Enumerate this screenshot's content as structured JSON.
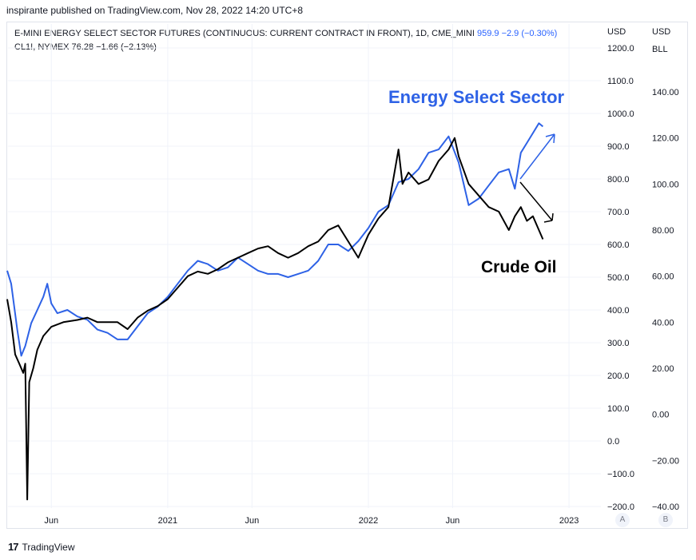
{
  "header": {
    "publisher": "inspirante published on TradingView.com, Nov 28, 2022 14:20 UTC+8"
  },
  "legend": {
    "series1_name": "E-MINI ENERGY SELECT SECTOR FUTURES (CONTINUOUS: CURRENT CONTRACT IN FRONT), 1D, CME_MINI",
    "series1_value": "959.9",
    "series1_change": "−2.9 (−0.30%)",
    "series2_name": "CL1!, NYMEX",
    "series2_value": "76.28",
    "series2_change": "−1.66 (−2.13%)"
  },
  "axes": {
    "left_unit": "USD",
    "right_unit_top": "USD",
    "right_unit_bottom": "BLL",
    "scale_a_button": "A",
    "scale_b_button": "B"
  },
  "footer": {
    "logo": "17",
    "brand": "TradingView"
  },
  "chart_data": {
    "type": "line",
    "annotations": [
      "Energy Select Sector",
      "Crude Oil"
    ],
    "colors": {
      "energy": "#2e62e6",
      "crude": "#000000",
      "grid": "#f0f3fa",
      "axis_text": "#131722"
    },
    "x_range": [
      2020.2,
      2022.92
    ],
    "x_ticks": [
      {
        "label": "Jun",
        "t": 2020.42
      },
      {
        "label": "2021",
        "t": 2021.0
      },
      {
        "label": "Jun",
        "t": 2021.42
      },
      {
        "label": "2022",
        "t": 2022.0
      },
      {
        "label": "Jun",
        "t": 2022.42
      },
      {
        "label": "2023",
        "t": 2023.0
      }
    ],
    "y_left": {
      "range": [
        -200,
        1200
      ],
      "ticks": [
        "1200.0",
        "1100.0",
        "1000.0",
        "900.0",
        "800.0",
        "700.0",
        "600.0",
        "500.0",
        "400.0",
        "300.0",
        "200.0",
        "100.0",
        "0.0",
        "−100.0",
        "−200.0"
      ],
      "tick_values": [
        1200,
        1100,
        1000,
        900,
        800,
        700,
        600,
        500,
        400,
        300,
        200,
        100,
        0,
        -100,
        -200
      ]
    },
    "y_right": {
      "range": [
        -40,
        145
      ],
      "ticks": [
        "140.00",
        "120.00",
        "100.00",
        "80.00",
        "60.00",
        "40.00",
        "20.00",
        "0.00",
        "−20.00",
        "−40.00"
      ],
      "tick_values": [
        140,
        120,
        100,
        80,
        60,
        40,
        20,
        0,
        -20,
        -40
      ]
    },
    "series": [
      {
        "key": "energy",
        "axis": "left",
        "points": [
          [
            2020.2,
            520
          ],
          [
            2020.22,
            480
          ],
          [
            2020.25,
            340
          ],
          [
            2020.27,
            260
          ],
          [
            2020.29,
            290
          ],
          [
            2020.32,
            360
          ],
          [
            2020.35,
            400
          ],
          [
            2020.38,
            440
          ],
          [
            2020.4,
            480
          ],
          [
            2020.42,
            420
          ],
          [
            2020.45,
            390
          ],
          [
            2020.5,
            400
          ],
          [
            2020.55,
            380
          ],
          [
            2020.6,
            370
          ],
          [
            2020.65,
            340
          ],
          [
            2020.7,
            330
          ],
          [
            2020.75,
            310
          ],
          [
            2020.8,
            310
          ],
          [
            2020.85,
            350
          ],
          [
            2020.9,
            390
          ],
          [
            2020.95,
            410
          ],
          [
            2021.0,
            440
          ],
          [
            2021.05,
            480
          ],
          [
            2021.1,
            520
          ],
          [
            2021.15,
            550
          ],
          [
            2021.2,
            540
          ],
          [
            2021.25,
            520
          ],
          [
            2021.3,
            530
          ],
          [
            2021.35,
            560
          ],
          [
            2021.4,
            540
          ],
          [
            2021.45,
            520
          ],
          [
            2021.5,
            510
          ],
          [
            2021.55,
            510
          ],
          [
            2021.6,
            500
          ],
          [
            2021.65,
            510
          ],
          [
            2021.7,
            520
          ],
          [
            2021.75,
            550
          ],
          [
            2021.8,
            600
          ],
          [
            2021.85,
            600
          ],
          [
            2021.9,
            580
          ],
          [
            2021.95,
            610
          ],
          [
            2022.0,
            650
          ],
          [
            2022.05,
            700
          ],
          [
            2022.1,
            720
          ],
          [
            2022.15,
            790
          ],
          [
            2022.2,
            800
          ],
          [
            2022.25,
            830
          ],
          [
            2022.3,
            880
          ],
          [
            2022.35,
            890
          ],
          [
            2022.4,
            930
          ],
          [
            2022.45,
            850
          ],
          [
            2022.5,
            720
          ],
          [
            2022.55,
            740
          ],
          [
            2022.6,
            780
          ],
          [
            2022.65,
            820
          ],
          [
            2022.7,
            830
          ],
          [
            2022.73,
            770
          ],
          [
            2022.76,
            880
          ],
          [
            2022.79,
            910
          ],
          [
            2022.82,
            940
          ],
          [
            2022.85,
            970
          ],
          [
            2022.87,
            960
          ]
        ]
      },
      {
        "key": "crude",
        "axis": "right",
        "points": [
          [
            2020.2,
            50
          ],
          [
            2020.22,
            40
          ],
          [
            2020.24,
            26
          ],
          [
            2020.26,
            22
          ],
          [
            2020.28,
            18
          ],
          [
            2020.29,
            22
          ],
          [
            2020.3,
            -37
          ],
          [
            2020.31,
            14
          ],
          [
            2020.33,
            20
          ],
          [
            2020.35,
            28
          ],
          [
            2020.38,
            34
          ],
          [
            2020.42,
            38
          ],
          [
            2020.48,
            40
          ],
          [
            2020.55,
            41
          ],
          [
            2020.6,
            42
          ],
          [
            2020.65,
            40
          ],
          [
            2020.7,
            40
          ],
          [
            2020.75,
            40
          ],
          [
            2020.8,
            37
          ],
          [
            2020.85,
            42
          ],
          [
            2020.9,
            45
          ],
          [
            2020.95,
            47
          ],
          [
            2021.0,
            50
          ],
          [
            2021.05,
            55
          ],
          [
            2021.1,
            60
          ],
          [
            2021.15,
            62
          ],
          [
            2021.2,
            61
          ],
          [
            2021.25,
            63
          ],
          [
            2021.3,
            66
          ],
          [
            2021.35,
            68
          ],
          [
            2021.4,
            70
          ],
          [
            2021.45,
            72
          ],
          [
            2021.5,
            73
          ],
          [
            2021.55,
            70
          ],
          [
            2021.6,
            68
          ],
          [
            2021.65,
            70
          ],
          [
            2021.7,
            73
          ],
          [
            2021.75,
            75
          ],
          [
            2021.8,
            80
          ],
          [
            2021.85,
            82
          ],
          [
            2021.9,
            75
          ],
          [
            2021.95,
            68
          ],
          [
            2022.0,
            78
          ],
          [
            2022.05,
            85
          ],
          [
            2022.1,
            90
          ],
          [
            2022.15,
            115
          ],
          [
            2022.17,
            100
          ],
          [
            2022.2,
            105
          ],
          [
            2022.25,
            100
          ],
          [
            2022.3,
            102
          ],
          [
            2022.35,
            110
          ],
          [
            2022.4,
            115
          ],
          [
            2022.43,
            120
          ],
          [
            2022.45,
            112
          ],
          [
            2022.5,
            100
          ],
          [
            2022.55,
            95
          ],
          [
            2022.6,
            90
          ],
          [
            2022.65,
            88
          ],
          [
            2022.7,
            80
          ],
          [
            2022.73,
            86
          ],
          [
            2022.76,
            90
          ],
          [
            2022.79,
            84
          ],
          [
            2022.82,
            86
          ],
          [
            2022.85,
            80
          ],
          [
            2022.87,
            76
          ]
        ]
      }
    ]
  }
}
